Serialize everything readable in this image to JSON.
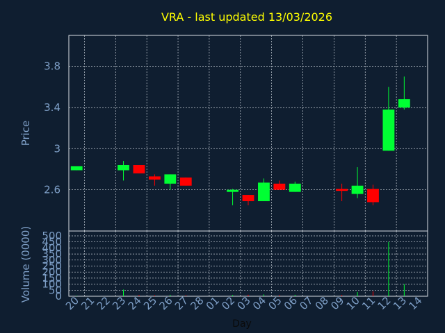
{
  "chart_data": {
    "type": "candlestick",
    "title": "VRA - last updated 13/03/2026",
    "xlabel": "Day",
    "price_panel": {
      "ylabel": "Price",
      "yticks": [
        2.6,
        3,
        3.4,
        3.8
      ],
      "ytick_labels": [
        "2.6",
        "3",
        "3.4",
        "3.8"
      ],
      "ylim": [
        2.2,
        4.1
      ]
    },
    "volume_panel": {
      "ylabel": "Volume (0000)",
      "yticks": [
        0,
        50,
        100,
        150,
        200,
        250,
        300,
        350,
        400,
        450,
        500
      ],
      "ytick_labels": [
        "0",
        "50",
        "100",
        "150",
        "200",
        "250",
        "300",
        "350",
        "400",
        "450",
        "500"
      ],
      "ylim": [
        0,
        500
      ]
    },
    "categories": [
      "20",
      "21",
      "22",
      "23",
      "24",
      "25",
      "26",
      "27",
      "28",
      "01",
      "02",
      "03",
      "04",
      "05",
      "06",
      "07",
      "08",
      "09",
      "10",
      "11",
      "12",
      "13",
      "14"
    ],
    "candles": [
      {
        "day": "20",
        "open": 2.79,
        "high": 2.83,
        "low": 2.79,
        "close": 2.83,
        "volume": 5
      },
      {
        "day": "23",
        "open": 2.79,
        "high": 2.88,
        "low": 2.69,
        "close": 2.84,
        "volume": 55
      },
      {
        "day": "24",
        "open": 2.84,
        "high": 2.84,
        "low": 2.76,
        "close": 2.76,
        "volume": 10
      },
      {
        "day": "25",
        "open": 2.73,
        "high": 2.75,
        "low": 2.64,
        "close": 2.7,
        "volume": 8
      },
      {
        "day": "26",
        "open": 2.66,
        "high": 2.75,
        "low": 2.6,
        "close": 2.75,
        "volume": 12
      },
      {
        "day": "27",
        "open": 2.72,
        "high": 2.72,
        "low": 2.64,
        "close": 2.64,
        "volume": 8
      },
      {
        "day": "02",
        "open": 2.59,
        "high": 2.61,
        "low": 2.45,
        "close": 2.6,
        "volume": 10
      },
      {
        "day": "03",
        "open": 2.55,
        "high": 2.55,
        "low": 2.45,
        "close": 2.49,
        "volume": 12
      },
      {
        "day": "04",
        "open": 2.49,
        "high": 2.71,
        "low": 2.49,
        "close": 2.67,
        "volume": 15
      },
      {
        "day": "05",
        "open": 2.66,
        "high": 2.69,
        "low": 2.6,
        "close": 2.6,
        "volume": 10
      },
      {
        "day": "06",
        "open": 2.58,
        "high": 2.68,
        "low": 2.58,
        "close": 2.66,
        "volume": 12
      },
      {
        "day": "09",
        "open": 2.61,
        "high": 2.66,
        "low": 2.49,
        "close": 2.59,
        "volume": 10
      },
      {
        "day": "10",
        "open": 2.56,
        "high": 2.82,
        "low": 2.52,
        "close": 2.64,
        "volume": 35
      },
      {
        "day": "11",
        "open": 2.61,
        "high": 2.65,
        "low": 2.45,
        "close": 2.48,
        "volume": 40
      },
      {
        "day": "12",
        "open": 2.98,
        "high": 3.6,
        "low": 2.98,
        "close": 3.38,
        "volume": 450
      },
      {
        "day": "13",
        "open": 3.4,
        "high": 3.7,
        "low": 3.38,
        "close": 3.48,
        "volume": 100
      }
    ],
    "colors": {
      "background": "#0f1e30",
      "up": "#00ff33",
      "down": "#ff0000",
      "grid": "#c8d0d8",
      "axis_text": "#7fa0c8",
      "title": "#ffff00"
    },
    "grid": true
  }
}
